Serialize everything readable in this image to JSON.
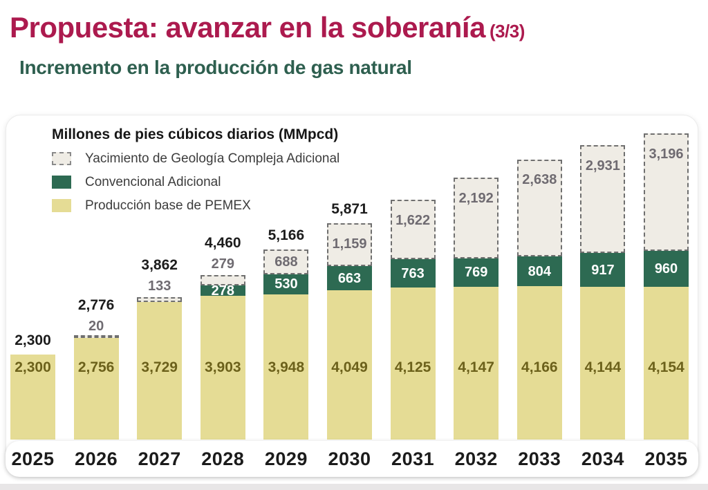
{
  "page": {
    "title": "Propuesta: avanzar en la soberanía",
    "title_suffix": "(3/3)",
    "subtitle": "Incremento en la producción de gas natural",
    "title_color": "#AC1A4E",
    "subtitle_color": "#2E5F4F"
  },
  "legend": {
    "title": "Millones de pies cúbicos diarios (MMpcd)",
    "items": [
      {
        "label": "Yacimiento de Geología Compleja Adicional",
        "swatch": "dashed-light-gray"
      },
      {
        "label": "Convencional Adicional",
        "swatch": "solid-dark-green"
      },
      {
        "label": "Producción base de PEMEX",
        "swatch": "solid-khaki"
      }
    ]
  },
  "colors": {
    "base_fill": "#E5DC95",
    "conv_fill": "#2D6A52",
    "geo_fill": "#EFECE5",
    "geo_border": "#6f6f6f",
    "total_label": "#1c1c1c",
    "geo_label": "#6F6B71",
    "conv_label": "#ffffff",
    "base_label": "#6C611B"
  },
  "chart_data": {
    "type": "bar",
    "stacked": true,
    "title": "Millones de pies cúbicos diarios (MMpcd)",
    "categories": [
      "2025",
      "2026",
      "2027",
      "2028",
      "2029",
      "2030",
      "2031",
      "2032",
      "2033",
      "2034",
      "2035"
    ],
    "series": [
      {
        "name": "Producción base de PEMEX",
        "color": "#E5DC95",
        "values": [
          2300,
          2756,
          3729,
          3903,
          3948,
          4049,
          4125,
          4147,
          4166,
          4144,
          4154
        ],
        "labels": [
          "2,300",
          "2,756",
          "3,729",
          "3,903",
          "3,948",
          "4,049",
          "4,125",
          "4,147",
          "4,166",
          "4,144",
          "4,154"
        ]
      },
      {
        "name": "Convencional Adicional",
        "color": "#2D6A52",
        "values": [
          0,
          0,
          0,
          278,
          530,
          663,
          763,
          769,
          804,
          917,
          960
        ],
        "labels": [
          "",
          "",
          "",
          "278",
          "530",
          "663",
          "763",
          "769",
          "804",
          "917",
          "960"
        ]
      },
      {
        "name": "Yacimiento de Geología Compleja Adicional",
        "color": "#EFECE5",
        "values": [
          0,
          20,
          133,
          279,
          688,
          1159,
          1622,
          2192,
          2638,
          2931,
          3196
        ],
        "labels": [
          "",
          "20",
          "133",
          "279",
          "688",
          "1,159",
          "1,622",
          "2,192",
          "2,638",
          "2,931",
          "3,196"
        ],
        "label_position": [
          "none",
          "above",
          "above",
          "above",
          "inside",
          "inside",
          "inside",
          "inside",
          "inside",
          "inside",
          "inside"
        ]
      }
    ],
    "totals": {
      "labels": [
        "2,300",
        "2,776",
        "3,862",
        "4,460",
        "5,166",
        "5,871",
        "",
        "",
        "",
        "",
        ""
      ],
      "values_shown": [
        2300,
        2776,
        3862,
        4460,
        5166,
        5871
      ],
      "shown_for_categories": [
        "2025",
        "2026",
        "2027",
        "2028",
        "2029",
        "2030"
      ]
    },
    "ylim": [
      0,
      8800
    ],
    "grid": false,
    "legend_position": "top-left",
    "value_axis": "hidden (values labeled on bars)"
  }
}
